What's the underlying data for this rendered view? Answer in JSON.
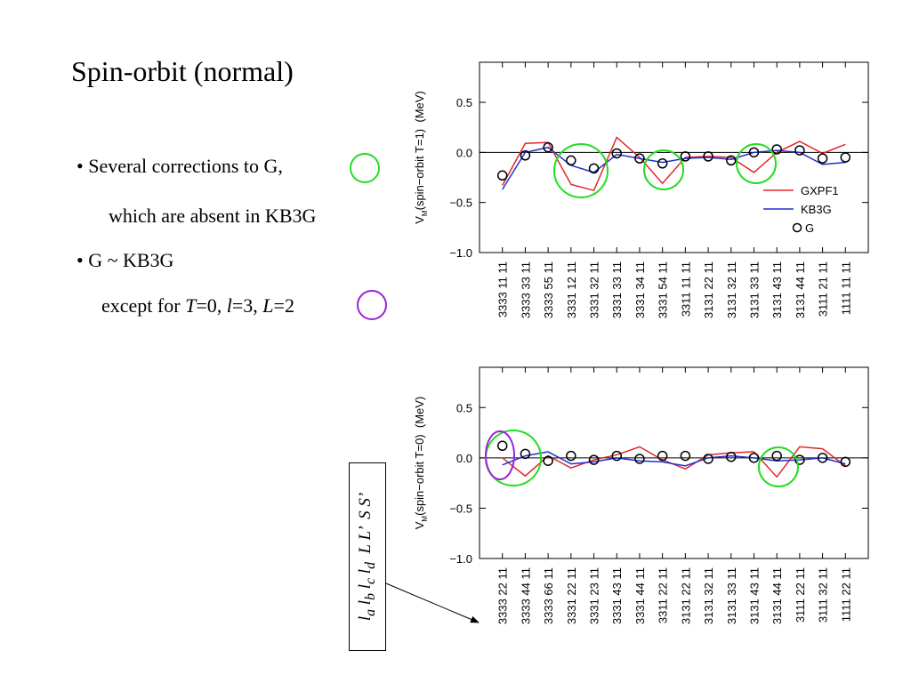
{
  "slide": {
    "title": "Spin-orbit (normal)",
    "bullet1": [
      "• Several corrections to G,",
      "which are absent in KB3G"
    ],
    "bullet2": [
      "• G ~ KB3G",
      "except for ",
      "T",
      "=0, ",
      "l",
      "=3, ",
      "L",
      "=2"
    ],
    "box": {
      "terms": [
        {
          "base": "l",
          "sub": "a"
        },
        {
          "base": "l",
          "sub": "b"
        },
        {
          "base": "l",
          "sub": "c"
        },
        {
          "base": "l",
          "sub": "d"
        }
      ],
      "rest": "L L’  S S’"
    }
  },
  "chart_data": [
    {
      "type": "line",
      "ylabel": {
        "v": "V",
        "sub": "M",
        "rest": "(spin−orbit T=1)  (MeV)"
      },
      "categories": [
        "3333 11 11",
        "3333 33 11",
        "3333 55 11",
        "3331 12 11",
        "3331 32 11",
        "3331 33 11",
        "3331 34 11",
        "3331 54 11",
        "3311 11 11",
        "3131 22 11",
        "3131 32 11",
        "3131 33 11",
        "3131 43 11",
        "3131 44 11",
        "3111 21 11",
        "1111 11 11"
      ],
      "series": [
        {
          "name": "GXPF1",
          "color": "#e02828",
          "values": [
            -0.33,
            0.09,
            0.1,
            -0.32,
            -0.38,
            0.15,
            -0.05,
            -0.31,
            -0.05,
            -0.04,
            -0.05,
            -0.2,
            0.0,
            0.11,
            -0.01,
            0.08
          ]
        },
        {
          "name": "KB3G",
          "color": "#2030d0",
          "values": [
            -0.37,
            0.0,
            0.05,
            -0.13,
            -0.2,
            -0.02,
            -0.06,
            -0.1,
            -0.06,
            -0.05,
            -0.07,
            0.0,
            0.02,
            0.0,
            -0.12,
            -0.1
          ]
        },
        {
          "name": "G",
          "color": "#000000",
          "marker": "circle",
          "values": [
            -0.23,
            -0.03,
            0.05,
            -0.08,
            -0.16,
            -0.01,
            -0.06,
            -0.11,
            -0.04,
            -0.04,
            -0.08,
            0.0,
            0.03,
            0.02,
            -0.06,
            -0.05
          ]
        }
      ],
      "ylim": [
        -1.0,
        0.9
      ],
      "yticks": [
        {
          "value": -1.0,
          "label": "−1.0"
        },
        {
          "value": -0.5,
          "label": "−0.5"
        },
        {
          "value": 0.0,
          "label": "0.0"
        },
        {
          "value": 0.5,
          "label": "0.5"
        }
      ],
      "legend": "lower right"
    },
    {
      "type": "line",
      "ylabel": {
        "v": "V",
        "sub": "M",
        "rest": "(spin−orbit T=0)  (MeV)"
      },
      "categories": [
        "3333 22 11",
        "3333 44 11",
        "3333 66 11",
        "3331 22 11",
        "3331 23 11",
        "3331 43 11",
        "3331 44 11",
        "3311 22 11",
        "3131 22 11",
        "3131 32 11",
        "3131 33 11",
        "3131 43 11",
        "3131 44 11",
        "3111 22 11",
        "3111 32 11",
        "1111 22 11"
      ],
      "series": [
        {
          "name": "GXPF1",
          "color": "#e02828",
          "values": [
            0.0,
            -0.18,
            0.02,
            -0.1,
            -0.02,
            0.03,
            0.11,
            -0.02,
            -0.11,
            0.03,
            0.05,
            0.06,
            -0.19,
            0.11,
            0.09,
            -0.08
          ]
        },
        {
          "name": "KB3G",
          "color": "#2030d0",
          "values": [
            -0.07,
            0.02,
            0.06,
            -0.06,
            -0.04,
            0.0,
            -0.03,
            -0.04,
            -0.08,
            0.0,
            0.02,
            0.0,
            -0.03,
            -0.02,
            0.0,
            -0.06
          ]
        },
        {
          "name": "G",
          "color": "#000000",
          "marker": "circle",
          "values": [
            0.12,
            0.04,
            -0.03,
            0.02,
            -0.02,
            0.02,
            -0.01,
            0.02,
            0.02,
            -0.01,
            0.01,
            0.0,
            0.02,
            -0.02,
            0.0,
            -0.04
          ]
        }
      ],
      "ylim": [
        -1.0,
        0.9
      ],
      "yticks": [
        {
          "value": -1.0,
          "label": "−1.0"
        },
        {
          "value": -0.5,
          "label": "−0.5"
        },
        {
          "value": 0.0,
          "label": "0.0"
        },
        {
          "value": 0.5,
          "label": "0.5"
        }
      ]
    }
  ]
}
